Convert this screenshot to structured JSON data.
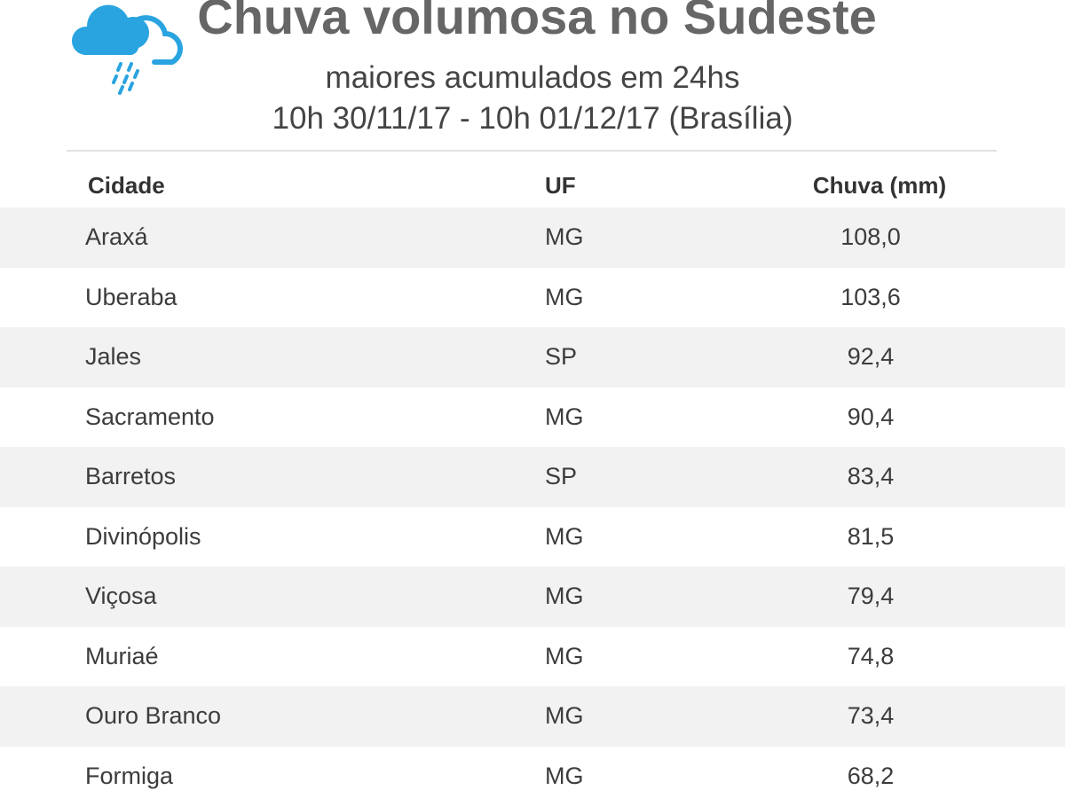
{
  "header": {
    "title": "Chuva volumosa no Sudeste",
    "subtitle": "maiores acumulados em 24hs",
    "period": "10h 30/11/17 - 10h 01/12/17 (Brasília)"
  },
  "table": {
    "columns": [
      "Cidade",
      "UF",
      "Chuva (mm)"
    ],
    "rows": [
      [
        "Araxá",
        "MG",
        "108,0"
      ],
      [
        "Uberaba",
        "MG",
        "103,6"
      ],
      [
        "Jales",
        "SP",
        "92,4"
      ],
      [
        "Sacramento",
        "MG",
        "90,4"
      ],
      [
        "Barretos",
        "SP",
        "83,4"
      ],
      [
        "Divinópolis",
        "MG",
        "81,5"
      ],
      [
        "Viçosa",
        "MG",
        "79,4"
      ],
      [
        "Muriaé",
        "MG",
        "74,8"
      ],
      [
        "Ouro Branco",
        "MG",
        "73,4"
      ],
      [
        "Formiga",
        "MG",
        "68,2"
      ]
    ]
  }
}
